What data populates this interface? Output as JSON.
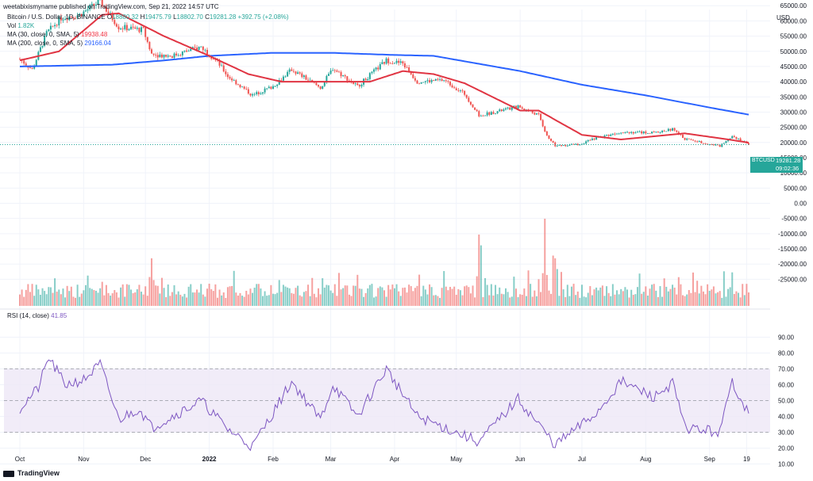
{
  "header": {
    "publisher": "weetabixismyname published on TradingView.com, Sep 21, 2022 14:57 UTC",
    "symbol": "Bitcoin / U.S. Dollar, 1D, BINANCE",
    "ohlc_o_label": "O",
    "ohlc_o": "18880.32",
    "ohlc_h_label": "H",
    "ohlc_h": "19475.79",
    "ohlc_l_label": "L",
    "ohlc_l": "18802.70",
    "ohlc_c_label": "C",
    "ohlc_c": "19281.28",
    "change": "+392.75 (+2.08%)",
    "vol_label": "Vol",
    "vol_value": "1.82K",
    "ma30_label": "MA (30, close, 0, SMA, 5)",
    "ma30_value": "19938.48",
    "ma200_label": "MA (200, close, 0, SMA, 5)",
    "ma200_value": "29166.04",
    "rsi_label": "RSI (14, close)",
    "rsi_value": "41.85"
  },
  "price_tag": {
    "symbol": "BTCUSD",
    "price": "19281.28",
    "countdown": "09:02:36"
  },
  "footer": {
    "brand": "TradingView"
  },
  "colors": {
    "up": "#26a69a",
    "down": "#ef5350",
    "ma30": "#e03543",
    "ma200": "#2962ff",
    "rsi": "#7e57c2",
    "rsi_band": "#ede7f6"
  },
  "chart_data": {
    "type": "candlestick",
    "currency": "USD",
    "price_axis_ticks": [
      "65000.00",
      "60000.00",
      "55000.00",
      "50000.00",
      "45000.00",
      "40000.00",
      "35000.00",
      "30000.00",
      "25000.00",
      "20000.00",
      "15000.00",
      "10000.00",
      "5000.00",
      "0.00",
      "-5000.00",
      "-10000.00",
      "-15000.00",
      "-20000.00",
      "-25000.00"
    ],
    "rsi_axis_ticks": [
      "90.00",
      "80.00",
      "70.00",
      "60.00",
      "50.00",
      "40.00",
      "30.00",
      "20.00",
      "10.00"
    ],
    "x_axis_ticks": [
      "Oct",
      "Nov",
      "Dec",
      "2022",
      "Feb",
      "Mar",
      "Apr",
      "May",
      "Jun",
      "Jul",
      "Aug",
      "Sep",
      "19"
    ],
    "close_keypoints": [
      {
        "x": "Oct 1",
        "close": 47500
      },
      {
        "x": "Oct 7",
        "close": 44000
      },
      {
        "x": "Oct 14",
        "close": 56000
      },
      {
        "x": "Oct 21",
        "close": 61000
      },
      {
        "x": "Oct 30",
        "close": 62000
      },
      {
        "x": "Nov 9",
        "close": 66500
      },
      {
        "x": "Nov 18",
        "close": 58000
      },
      {
        "x": "Nov 30",
        "close": 57000
      },
      {
        "x": "Dec 4",
        "close": 49000
      },
      {
        "x": "Dec 14",
        "close": 48500
      },
      {
        "x": "Dec 28",
        "close": 51500
      },
      {
        "x": "Jan 5",
        "close": 46500
      },
      {
        "x": "Jan 10",
        "close": 41800
      },
      {
        "x": "Jan 22",
        "close": 35500
      },
      {
        "x": "Feb 1",
        "close": 38500
      },
      {
        "x": "Feb 10",
        "close": 44000
      },
      {
        "x": "Feb 24",
        "close": 38000
      },
      {
        "x": "Mar 2",
        "close": 44400
      },
      {
        "x": "Mar 14",
        "close": 38500
      },
      {
        "x": "Mar 28",
        "close": 47000
      },
      {
        "x": "Apr 5",
        "close": 46000
      },
      {
        "x": "Apr 12",
        "close": 40000
      },
      {
        "x": "Apr 25",
        "close": 40500
      },
      {
        "x": "May 5",
        "close": 36000
      },
      {
        "x": "May 12",
        "close": 28800
      },
      {
        "x": "May 31",
        "close": 31800
      },
      {
        "x": "Jun 10",
        "close": 29000
      },
      {
        "x": "Jun 14",
        "close": 22000
      },
      {
        "x": "Jun 18",
        "close": 19000
      },
      {
        "x": "Jun 30",
        "close": 19400
      },
      {
        "x": "Jul 8",
        "close": 21500
      },
      {
        "x": "Jul 20",
        "close": 23500
      },
      {
        "x": "Aug 5",
        "close": 23200
      },
      {
        "x": "Aug 14",
        "close": 24400
      },
      {
        "x": "Aug 20",
        "close": 21200
      },
      {
        "x": "Sep 6",
        "close": 18800
      },
      {
        "x": "Sep 12",
        "close": 22300
      },
      {
        "x": "Sep 20",
        "close": 19281.28
      }
    ],
    "ma30_keypoints": [
      {
        "x": "Oct 1",
        "value": 47000
      },
      {
        "x": "Oct 20",
        "value": 50000
      },
      {
        "x": "Nov 10",
        "value": 62000
      },
      {
        "x": "Nov 18",
        "value": 62500
      },
      {
        "x": "Dec 10",
        "value": 55000
      },
      {
        "x": "Jan 1",
        "value": 48500
      },
      {
        "x": "Jan 20",
        "value": 42500
      },
      {
        "x": "Feb 5",
        "value": 40000
      },
      {
        "x": "Mar 1",
        "value": 40000
      },
      {
        "x": "Mar 20",
        "value": 40000
      },
      {
        "x": "Apr 5",
        "value": 43500
      },
      {
        "x": "Apr 20",
        "value": 42500
      },
      {
        "x": "May 5",
        "value": 39500
      },
      {
        "x": "Jun 1",
        "value": 30500
      },
      {
        "x": "Jun 10",
        "value": 30500
      },
      {
        "x": "Jul 1",
        "value": 22500
      },
      {
        "x": "Jul 20",
        "value": 21000
      },
      {
        "x": "Aug 20",
        "value": 23000
      },
      {
        "x": "Sep 10",
        "value": 21000
      },
      {
        "x": "Sep 20",
        "value": 19938.48
      }
    ],
    "ma200_keypoints": [
      {
        "x": "Oct 1",
        "value": 45000
      },
      {
        "x": "Nov 15",
        "value": 45600
      },
      {
        "x": "Dec 10",
        "value": 47000
      },
      {
        "x": "Jan 1",
        "value": 48500
      },
      {
        "x": "Feb 1",
        "value": 49500
      },
      {
        "x": "Mar 1",
        "value": 49500
      },
      {
        "x": "Apr 1",
        "value": 48800
      },
      {
        "x": "Apr 20",
        "value": 48500
      },
      {
        "x": "Jun 1",
        "value": 43500
      },
      {
        "x": "Jul 1",
        "value": 39000
      },
      {
        "x": "Aug 1",
        "value": 35500
      },
      {
        "x": "Sep 1",
        "value": 31500
      },
      {
        "x": "Sep 20",
        "value": 29166.04
      }
    ],
    "rsi_keypoints": [
      {
        "x": "Oct 1",
        "value": 45
      },
      {
        "x": "Oct 10",
        "value": 58
      },
      {
        "x": "Oct 15",
        "value": 77
      },
      {
        "x": "Oct 23",
        "value": 60
      },
      {
        "x": "Nov 1",
        "value": 63
      },
      {
        "x": "Nov 9",
        "value": 73
      },
      {
        "x": "Nov 18",
        "value": 38
      },
      {
        "x": "Nov 28",
        "value": 45
      },
      {
        "x": "Dec 4",
        "value": 33
      },
      {
        "x": "Dec 14",
        "value": 40
      },
      {
        "x": "Dec 28",
        "value": 50
      },
      {
        "x": "Jan 10",
        "value": 32
      },
      {
        "x": "Jan 22",
        "value": 21
      },
      {
        "x": "Feb 10",
        "value": 62
      },
      {
        "x": "Feb 24",
        "value": 38
      },
      {
        "x": "Mar 2",
        "value": 60
      },
      {
        "x": "Mar 14",
        "value": 40
      },
      {
        "x": "Mar 28",
        "value": 70
      },
      {
        "x": "Apr 12",
        "value": 40
      },
      {
        "x": "May 12",
        "value": 24
      },
      {
        "x": "May 31",
        "value": 51
      },
      {
        "x": "Jun 18",
        "value": 22
      },
      {
        "x": "Jul 8",
        "value": 42
      },
      {
        "x": "Jul 20",
        "value": 62
      },
      {
        "x": "Aug 5",
        "value": 52
      },
      {
        "x": "Aug 14",
        "value": 61
      },
      {
        "x": "Aug 20",
        "value": 33
      },
      {
        "x": "Sep 6",
        "value": 30
      },
      {
        "x": "Sep 12",
        "value": 62
      },
      {
        "x": "Sep 20",
        "value": 41.85
      }
    ],
    "volume_spikes": [
      {
        "x": "Dec 4",
        "value": "high"
      },
      {
        "x": "May 12",
        "value": "highest"
      },
      {
        "x": "Jun 13",
        "value": "highest"
      },
      {
        "x": "Jun 18",
        "value": "high"
      }
    ],
    "rsi_band": [
      30,
      70
    ],
    "rsi_midline": 50,
    "last_price": 19281.28
  }
}
